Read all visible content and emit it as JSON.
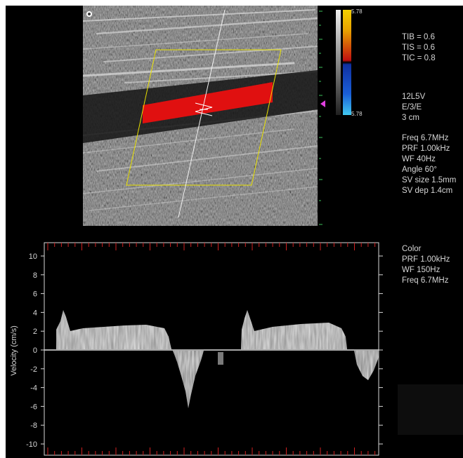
{
  "color_scale": {
    "top_value": "5.78",
    "bottom_value": "5.78",
    "colors": {
      "red": "#e01010",
      "yellow": "#f4d000",
      "blue": "#1a5fd8",
      "cyan": "#40c8f0"
    }
  },
  "params": {
    "tib": "TIB = 0.6",
    "tis": "TIS = 0.6",
    "tic": "TIC = 0.8",
    "probe": "12L5V",
    "mode": "E/3/E",
    "depth": "3 cm",
    "freq": "Freq 6.7MHz",
    "prf": "PRF 1.00kHz",
    "wf": "WF 40Hz",
    "angle": "Angle 60°",
    "sv_size": "SV size 1.5mm",
    "sv_dep": "SV dep 1.4cm"
  },
  "color_params": {
    "title": "Color",
    "prf": "PRF 1.00kHz",
    "wf": "WF 150Hz",
    "freq": "Freq 6.7MHz"
  },
  "doppler": {
    "y_label": "Velocity (cm/s)",
    "ticks": [
      10,
      8,
      6,
      4,
      2,
      0,
      -2,
      -4,
      -6,
      -8,
      -10
    ],
    "tick_labels": [
      "10",
      "8",
      "6",
      "4",
      "2",
      "0",
      "-2",
      "-4",
      "-6",
      "-8",
      "-10"
    ]
  }
}
